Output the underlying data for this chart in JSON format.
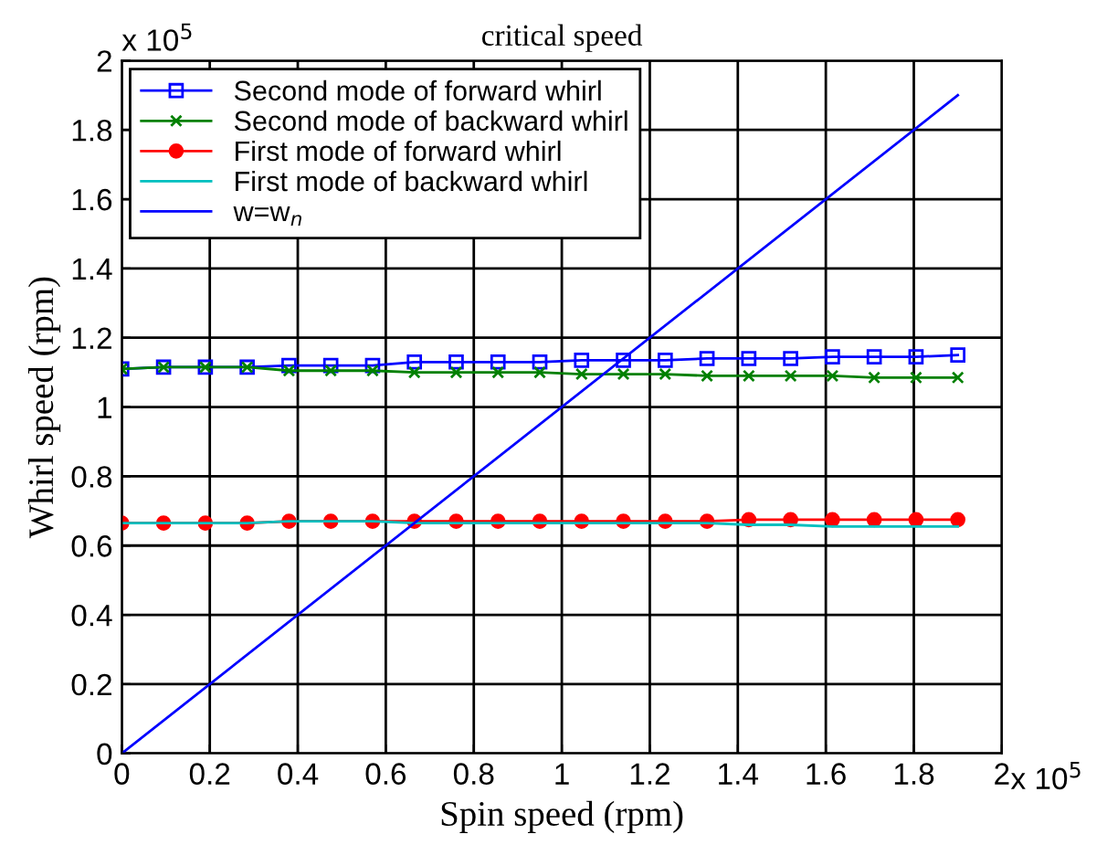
{
  "chart_data": {
    "type": "line",
    "title": "critical speed",
    "xlabel": "Spin speed (rpm)",
    "ylabel": "Whirl speed (rpm)",
    "annotations": [
      "x 10$^{5}$",
      "x 10$^{5}$"
    ],
    "xlim": [
      0,
      2
    ],
    "ylim": [
      0,
      2
    ],
    "xticks": [
      0,
      0.2,
      0.4,
      0.6,
      0.8,
      1,
      1.2,
      1.4,
      1.6,
      1.8,
      2
    ],
    "yticks": [
      0,
      0.2,
      0.4,
      0.6,
      0.8,
      1,
      1.2,
      1.4,
      1.6,
      1.8,
      2
    ],
    "grid": true,
    "legend": "top left",
    "x": [
      0,
      0.095,
      0.19,
      0.285,
      0.38,
      0.475,
      0.57,
      0.665,
      0.76,
      0.855,
      0.95,
      1.045,
      1.14,
      1.235,
      1.33,
      1.425,
      1.52,
      1.615,
      1.71,
      1.805,
      1.9
    ],
    "series": [
      {
        "name": "Second mode of forward whirl",
        "color": "#0000ff",
        "marker": "square",
        "values": [
          1.11,
          1.115,
          1.115,
          1.115,
          1.12,
          1.12,
          1.12,
          1.13,
          1.13,
          1.13,
          1.13,
          1.135,
          1.135,
          1.135,
          1.14,
          1.14,
          1.14,
          1.145,
          1.145,
          1.145,
          1.15
        ]
      },
      {
        "name": "Second mode of backward whirl",
        "color": "#008000",
        "marker": "cross",
        "values": [
          1.11,
          1.115,
          1.115,
          1.115,
          1.105,
          1.105,
          1.105,
          1.1,
          1.1,
          1.1,
          1.1,
          1.095,
          1.095,
          1.095,
          1.09,
          1.09,
          1.09,
          1.09,
          1.085,
          1.085,
          1.085
        ]
      },
      {
        "name": "First mode of forward whirl",
        "color": "#ff0000",
        "marker": "circle",
        "values": [
          0.665,
          0.665,
          0.665,
          0.665,
          0.67,
          0.67,
          0.67,
          0.67,
          0.67,
          0.67,
          0.67,
          0.67,
          0.67,
          0.67,
          0.67,
          0.675,
          0.675,
          0.675,
          0.675,
          0.675,
          0.675
        ]
      },
      {
        "name": "First mode of backward whirl",
        "color": "#00bfbf",
        "marker": "none",
        "values": [
          0.665,
          0.665,
          0.665,
          0.665,
          0.67,
          0.67,
          0.67,
          0.665,
          0.665,
          0.665,
          0.665,
          0.665,
          0.665,
          0.665,
          0.665,
          0.66,
          0.66,
          0.655,
          0.655,
          0.655,
          0.655
        ]
      },
      {
        "name": "w=w$_{n}$",
        "color": "#0000ff",
        "marker": "none",
        "x": [
          0,
          1.9
        ],
        "values": [
          0,
          1.9
        ]
      }
    ]
  }
}
